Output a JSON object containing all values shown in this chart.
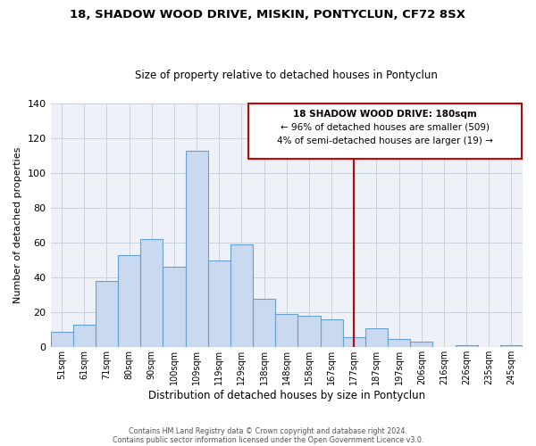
{
  "title": "18, SHADOW WOOD DRIVE, MISKIN, PONTYCLUN, CF72 8SX",
  "subtitle": "Size of property relative to detached houses in Pontyclun",
  "xlabel": "Distribution of detached houses by size in Pontyclun",
  "ylabel": "Number of detached properties",
  "bar_labels": [
    "51sqm",
    "61sqm",
    "71sqm",
    "80sqm",
    "90sqm",
    "100sqm",
    "109sqm",
    "119sqm",
    "129sqm",
    "138sqm",
    "148sqm",
    "158sqm",
    "167sqm",
    "177sqm",
    "187sqm",
    "197sqm",
    "206sqm",
    "216sqm",
    "226sqm",
    "235sqm",
    "245sqm"
  ],
  "bar_heights": [
    9,
    13,
    38,
    53,
    62,
    46,
    113,
    50,
    59,
    28,
    19,
    18,
    16,
    6,
    11,
    5,
    3,
    0,
    1,
    0,
    1
  ],
  "bar_color": "#c8d9f0",
  "bar_edge_color": "#6aa0d0",
  "vline_x": 13.0,
  "vline_color": "#cc0000",
  "annotation_title": "18 SHADOW WOOD DRIVE: 180sqm",
  "annotation_line1": "← 96% of detached houses are smaller (509)",
  "annotation_line2": "4% of semi-detached houses are larger (19) →",
  "annotation_box_color": "#ffffff",
  "annotation_box_edge": "#cc0000",
  "ylim": [
    0,
    140
  ],
  "yticks": [
    0,
    20,
    40,
    60,
    80,
    100,
    120,
    140
  ],
  "footer1": "Contains HM Land Registry data © Crown copyright and database right 2024.",
  "footer2": "Contains public sector information licensed under the Open Government Licence v3.0.",
  "background_color": "#ffffff",
  "grid_color": "#c8d0dc"
}
